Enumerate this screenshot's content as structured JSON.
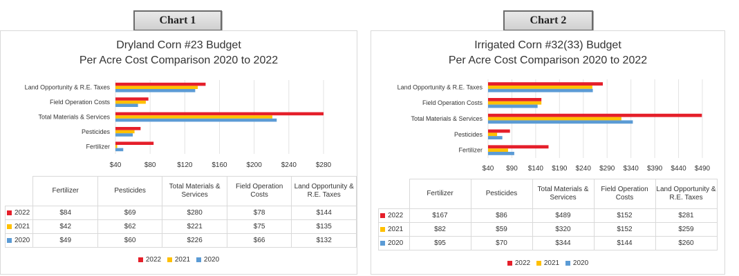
{
  "colors": {
    "2022": "#e51f2a",
    "2021": "#ffc000",
    "2020": "#5b9bd5"
  },
  "chart_data": [
    {
      "type": "bar",
      "orientation": "horizontal",
      "tab_label": "Chart 1",
      "title": "Dryland Corn #23 Budget",
      "subtitle": "Per Acre Cost Comparison 2020 to 2022",
      "categories": [
        "Land Opportunity & R.E. Taxes",
        "Field Operation Costs",
        "Total Materials & Services",
        "Pesticides",
        "Fertilizer"
      ],
      "series": [
        {
          "name": "2022",
          "values": [
            144,
            78,
            280,
            69,
            84
          ]
        },
        {
          "name": "2021",
          "values": [
            135,
            75,
            221,
            62,
            42
          ]
        },
        {
          "name": "2020",
          "values": [
            132,
            66,
            226,
            60,
            49
          ]
        }
      ],
      "x_ticks": [
        "$40",
        "$80",
        "$120",
        "$160",
        "$200",
        "$240",
        "$280"
      ],
      "xlim": [
        40,
        280
      ],
      "grid": true,
      "legend_position": "bottom",
      "table": {
        "columns": [
          "Fertilizer",
          "Pesticides",
          "Total Materials & Services",
          "Field Operation Costs",
          "Land Opportunity & R.E. Taxes"
        ],
        "rows": [
          {
            "label": "2022",
            "cells": [
              "$84",
              "$69",
              "$280",
              "$78",
              "$144"
            ]
          },
          {
            "label": "2021",
            "cells": [
              "$42",
              "$62",
              "$221",
              "$75",
              "$135"
            ]
          },
          {
            "label": "2020",
            "cells": [
              "$49",
              "$60",
              "$226",
              "$66",
              "$132"
            ]
          }
        ]
      }
    },
    {
      "type": "bar",
      "orientation": "horizontal",
      "tab_label": "Chart 2",
      "title": "Irrigated Corn #32(33) Budget",
      "subtitle": "Per Acre Cost Comparison 2020 to 2022",
      "categories": [
        "Land Opportunity & R.E. Taxes",
        "Field Operation Costs",
        "Total Materials & Services",
        "Pesticides",
        "Fertilizer"
      ],
      "series": [
        {
          "name": "2022",
          "values": [
            281,
            152,
            489,
            86,
            167
          ]
        },
        {
          "name": "2021",
          "values": [
            259,
            152,
            320,
            59,
            82
          ]
        },
        {
          "name": "2020",
          "values": [
            260,
            144,
            344,
            70,
            95
          ]
        }
      ],
      "x_ticks": [
        "$40",
        "$90",
        "$140",
        "$190",
        "$240",
        "$290",
        "$340",
        "$390",
        "$440",
        "$490"
      ],
      "xlim": [
        40,
        490
      ],
      "grid": true,
      "legend_position": "bottom",
      "table": {
        "columns": [
          "Fertilizer",
          "Pesticides",
          "Total Materials & Services",
          "Field Operation Costs",
          "Land Opportunity & R.E. Taxes"
        ],
        "rows": [
          {
            "label": "2022",
            "cells": [
              "$167",
              "$86",
              "$489",
              "$152",
              "$281"
            ]
          },
          {
            "label": "2021",
            "cells": [
              "$82",
              "$59",
              "$320",
              "$152",
              "$259"
            ]
          },
          {
            "label": "2020",
            "cells": [
              "$95",
              "$70",
              "$344",
              "$144",
              "$260"
            ]
          }
        ]
      }
    }
  ]
}
